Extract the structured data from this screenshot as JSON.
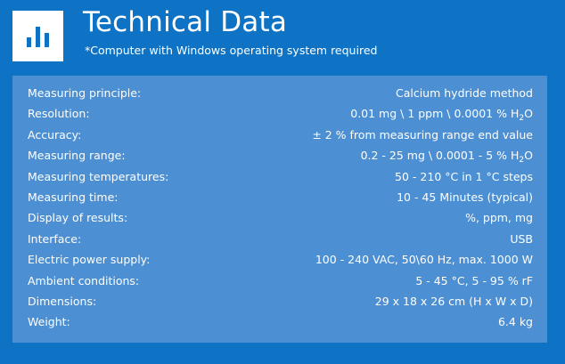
{
  "header": {
    "logo_icon": "bar-chart-icon",
    "title": "Technical Data",
    "subtitle": "*Computer with Windows operating system required"
  },
  "specs": [
    {
      "label": "Measuring principle:",
      "value_pre": "Calcium hydride method",
      "value_sub": "",
      "value_post": ""
    },
    {
      "label": "Resolution:",
      "value_pre": "0.01 mg \\ 1 ppm \\ 0.0001 % H",
      "value_sub": "2",
      "value_post": "O"
    },
    {
      "label": "Accuracy:",
      "value_pre": "± 2 % from measuring range end value",
      "value_sub": "",
      "value_post": ""
    },
    {
      "label": "Measuring range:",
      "value_pre": "0.2 - 25 mg \\ 0.0001 - 5 % H",
      "value_sub": "2",
      "value_post": "O"
    },
    {
      "label": "Measuring temperatures:",
      "value_pre": "50 - 210 °C in 1 °C steps",
      "value_sub": "",
      "value_post": ""
    },
    {
      "label": "Measuring time:",
      "value_pre": "10 - 45 Minutes (typical)",
      "value_sub": "",
      "value_post": ""
    },
    {
      "label": "Display of results:",
      "value_pre": "%, ppm, mg",
      "value_sub": "",
      "value_post": ""
    },
    {
      "label": "Interface:",
      "value_pre": "USB",
      "value_sub": "",
      "value_post": ""
    },
    {
      "label": "Electric power supply:",
      "value_pre": "100 - 240 VAC, 50\\60 Hz, max. 1000 W",
      "value_sub": "",
      "value_post": ""
    },
    {
      "label": "Ambient conditions:",
      "value_pre": "5 - 45 °C, 5 - 95 % rF",
      "value_sub": "",
      "value_post": ""
    },
    {
      "label": "Dimensions:",
      "value_pre": "29 x 18 x 26 cm (H x W x D)",
      "value_sub": "",
      "value_post": ""
    },
    {
      "label": "Weight:",
      "value_pre": "6.4 kg",
      "value_sub": "",
      "value_post": ""
    }
  ],
  "colors": {
    "background": "#0e72c5",
    "panel": "#4c8fd2",
    "logo_bg": "#ffffff",
    "logo_bars": "#0e72c5"
  }
}
